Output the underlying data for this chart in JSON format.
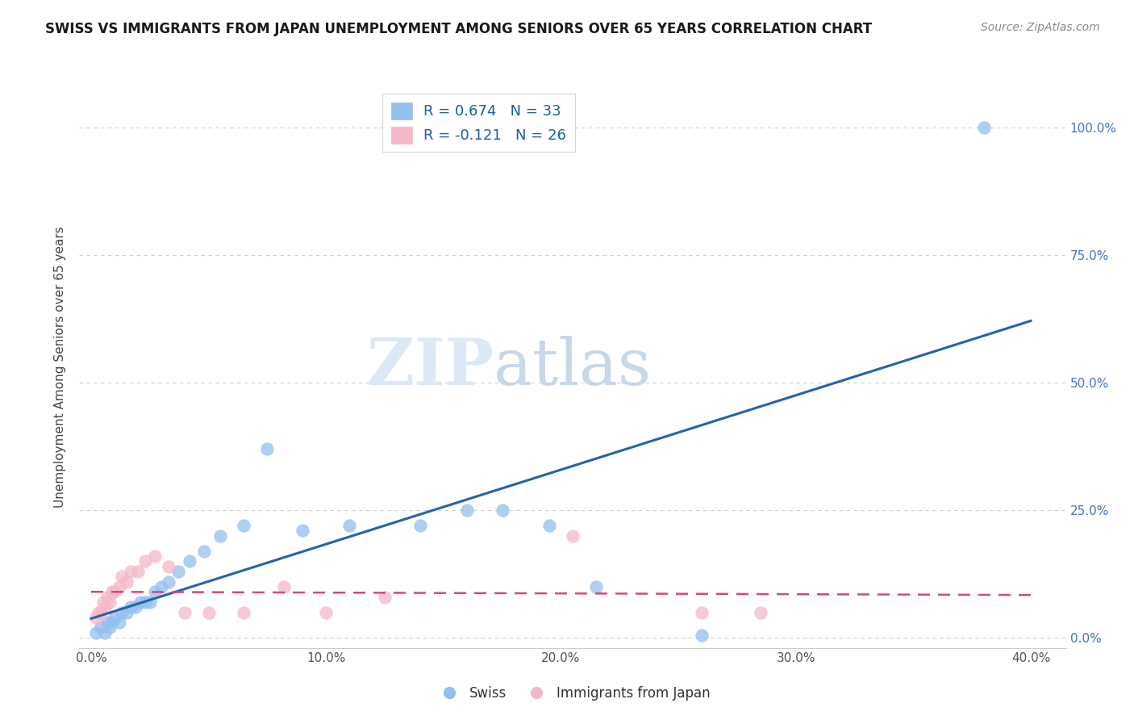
{
  "title": "SWISS VS IMMIGRANTS FROM JAPAN UNEMPLOYMENT AMONG SENIORS OVER 65 YEARS CORRELATION CHART",
  "source": "Source: ZipAtlas.com",
  "ylabel": "Unemployment Among Seniors over 65 years",
  "xlabel_ticks": [
    "0.0%",
    "10.0%",
    "20.0%",
    "30.0%",
    "40.0%"
  ],
  "xlabel_vals": [
    0.0,
    0.1,
    0.2,
    0.3,
    0.4
  ],
  "ylabel_ticks": [
    "0.0%",
    "25.0%",
    "50.0%",
    "75.0%",
    "100.0%"
  ],
  "ylabel_vals": [
    0.0,
    0.25,
    0.5,
    0.75,
    1.0
  ],
  "xlim": [
    -0.005,
    0.415
  ],
  "ylim": [
    -0.02,
    1.08
  ],
  "swiss_color": "#92c0ed",
  "japan_color": "#f5b8c8",
  "swiss_line_color": "#2563a8",
  "japan_line_color": "#d64878",
  "R_swiss": 0.674,
  "N_swiss": 33,
  "R_japan": -0.121,
  "N_japan": 26,
  "swiss_x": [
    0.002,
    0.004,
    0.006,
    0.007,
    0.008,
    0.009,
    0.01,
    0.012,
    0.013,
    0.015,
    0.017,
    0.019,
    0.021,
    0.023,
    0.025,
    0.027,
    0.03,
    0.033,
    0.037,
    0.042,
    0.048,
    0.055,
    0.065,
    0.075,
    0.09,
    0.11,
    0.14,
    0.16,
    0.175,
    0.195,
    0.215,
    0.26,
    0.38
  ],
  "swiss_y": [
    0.01,
    0.02,
    0.01,
    0.03,
    0.02,
    0.03,
    0.04,
    0.03,
    0.05,
    0.05,
    0.06,
    0.06,
    0.07,
    0.07,
    0.07,
    0.09,
    0.1,
    0.11,
    0.13,
    0.15,
    0.17,
    0.2,
    0.22,
    0.37,
    0.21,
    0.22,
    0.22,
    0.25,
    0.25,
    0.22,
    0.1,
    0.005,
    1.0
  ],
  "japan_x": [
    0.002,
    0.003,
    0.004,
    0.005,
    0.006,
    0.007,
    0.008,
    0.009,
    0.01,
    0.012,
    0.013,
    0.015,
    0.017,
    0.02,
    0.023,
    0.027,
    0.033,
    0.04,
    0.05,
    0.065,
    0.082,
    0.1,
    0.125,
    0.205,
    0.26,
    0.285
  ],
  "japan_y": [
    0.04,
    0.05,
    0.05,
    0.07,
    0.06,
    0.08,
    0.07,
    0.09,
    0.09,
    0.1,
    0.12,
    0.11,
    0.13,
    0.13,
    0.15,
    0.16,
    0.14,
    0.05,
    0.05,
    0.05,
    0.1,
    0.05,
    0.08,
    0.2,
    0.05,
    0.05
  ],
  "watermark_zip": "ZIP",
  "watermark_atlas": "atlas",
  "background_color": "#ffffff",
  "grid_color": "#d0d0d0",
  "legend_label_swiss": "R = 0.674   N = 33",
  "legend_label_japan": "R = -0.121   N = 26",
  "bottom_legend_swiss": "Swiss",
  "bottom_legend_japan": "Immigrants from Japan"
}
